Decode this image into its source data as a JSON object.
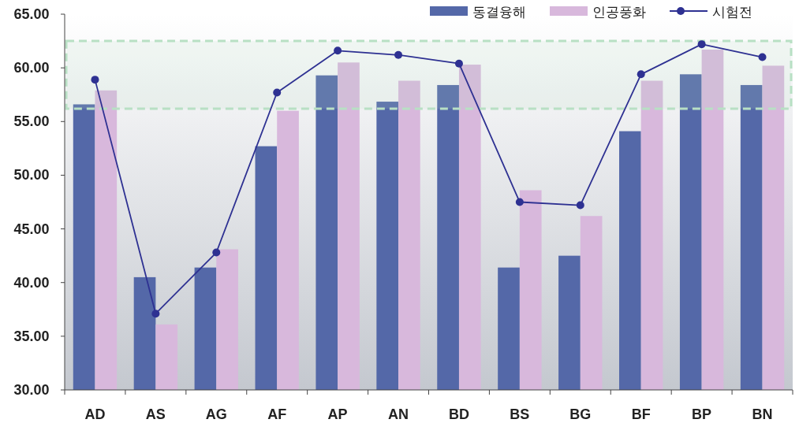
{
  "chart_data": {
    "type": "bar",
    "categories": [
      "AD",
      "AS",
      "AG",
      "AF",
      "AP",
      "AN",
      "BD",
      "BS",
      "BG",
      "BF",
      "BP",
      "BN"
    ],
    "series": [
      {
        "name": "동결융해",
        "color": "#5468a8",
        "values": [
          56.6,
          40.5,
          41.4,
          52.7,
          59.3,
          56.85,
          58.4,
          41.4,
          42.5,
          54.1,
          59.4,
          58.4
        ]
      },
      {
        "name": "인공풍화",
        "color": "#d8b8dc",
        "values": [
          57.9,
          36.1,
          43.1,
          56.0,
          60.5,
          58.8,
          60.3,
          48.6,
          46.2,
          58.8,
          61.7,
          60.2
        ]
      },
      {
        "name": "시험전",
        "type": "line",
        "color": "#2e3192",
        "marker": "circle",
        "values": [
          58.9,
          37.1,
          42.8,
          57.7,
          61.6,
          61.2,
          60.4,
          47.5,
          47.2,
          59.4,
          62.2,
          61.0
        ]
      }
    ],
    "ylim": [
      30,
      65
    ],
    "yticks": [
      {
        "value": 30,
        "label": "30.00"
      },
      {
        "value": 35,
        "label": "35.00"
      },
      {
        "value": 40,
        "label": "40.00"
      },
      {
        "value": 45,
        "label": "45.00"
      },
      {
        "value": 50,
        "label": "50.00"
      },
      {
        "value": 55,
        "label": "55.00"
      },
      {
        "value": 60,
        "label": "60.00"
      },
      {
        "value": 65,
        "label": "65.00"
      }
    ],
    "bands": [
      {
        "axis": "y",
        "from": 56.2,
        "to": 62.5,
        "color": "#b8e0c4"
      }
    ],
    "legend": "top right",
    "grid": false
  }
}
